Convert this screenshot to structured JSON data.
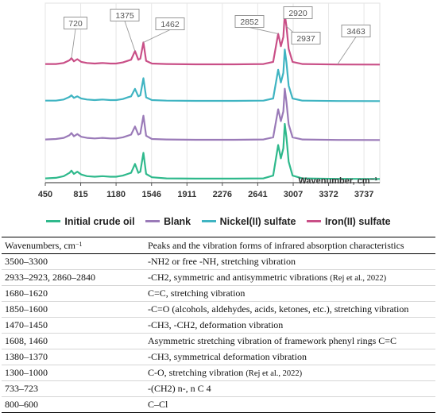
{
  "chart_data": {
    "type": "line",
    "xlabel": "Wavenumber, cm⁻¹",
    "xlim": [
      450,
      3900
    ],
    "x_ticks": [
      "450",
      "815",
      "1180",
      "1546",
      "1911",
      "2276",
      "2641",
      "3007",
      "3372",
      "3737"
    ],
    "x_tick_values": [
      450,
      815,
      1180,
      1546,
      1911,
      2276,
      2641,
      3007,
      3372,
      3737
    ],
    "series": [
      {
        "name": "Iron(II) sulfate",
        "color": "#c94f87",
        "points": [
          [
            450,
            0.02
          ],
          [
            560,
            0.02
          ],
          [
            640,
            0.04
          ],
          [
            700,
            0.09
          ],
          [
            720,
            0.13
          ],
          [
            745,
            0.07
          ],
          [
            780,
            0.11
          ],
          [
            820,
            0.06
          ],
          [
            880,
            0.04
          ],
          [
            960,
            0.03
          ],
          [
            1040,
            0.04
          ],
          [
            1120,
            0.03
          ],
          [
            1180,
            0.03
          ],
          [
            1250,
            0.05
          ],
          [
            1300,
            0.08
          ],
          [
            1335,
            0.1
          ],
          [
            1375,
            0.26
          ],
          [
            1410,
            0.1
          ],
          [
            1430,
            0.12
          ],
          [
            1462,
            0.42
          ],
          [
            1490,
            0.08
          ],
          [
            1550,
            0.03
          ],
          [
            1700,
            0.02
          ],
          [
            2000,
            0.015
          ],
          [
            2400,
            0.015
          ],
          [
            2700,
            0.02
          ],
          [
            2800,
            0.06
          ],
          [
            2852,
            0.58
          ],
          [
            2880,
            0.35
          ],
          [
            2905,
            0.52
          ],
          [
            2920,
            0.95
          ],
          [
            2937,
            0.72
          ],
          [
            2960,
            0.3
          ],
          [
            3000,
            0.06
          ],
          [
            3100,
            0.02
          ],
          [
            3463,
            0.012
          ],
          [
            3900,
            0.01
          ]
        ]
      },
      {
        "name": "Nickel(II) sulfate",
        "color": "#3fb4c2",
        "points": [
          [
            450,
            0.02
          ],
          [
            560,
            0.02
          ],
          [
            640,
            0.04
          ],
          [
            700,
            0.09
          ],
          [
            720,
            0.12
          ],
          [
            745,
            0.07
          ],
          [
            780,
            0.1
          ],
          [
            820,
            0.06
          ],
          [
            880,
            0.04
          ],
          [
            960,
            0.03
          ],
          [
            1040,
            0.04
          ],
          [
            1120,
            0.03
          ],
          [
            1180,
            0.03
          ],
          [
            1250,
            0.05
          ],
          [
            1300,
            0.08
          ],
          [
            1335,
            0.1
          ],
          [
            1375,
            0.24
          ],
          [
            1410,
            0.1
          ],
          [
            1430,
            0.12
          ],
          [
            1462,
            0.44
          ],
          [
            1490,
            0.08
          ],
          [
            1550,
            0.03
          ],
          [
            1700,
            0.02
          ],
          [
            2000,
            0.015
          ],
          [
            2400,
            0.015
          ],
          [
            2700,
            0.02
          ],
          [
            2800,
            0.06
          ],
          [
            2852,
            0.6
          ],
          [
            2880,
            0.36
          ],
          [
            2905,
            0.54
          ],
          [
            2920,
            0.98
          ],
          [
            2937,
            0.74
          ],
          [
            2960,
            0.3
          ],
          [
            3000,
            0.06
          ],
          [
            3100,
            0.02
          ],
          [
            3463,
            0.012
          ],
          [
            3900,
            0.01
          ]
        ]
      },
      {
        "name": "Blank",
        "color": "#9a7ab8",
        "points": [
          [
            450,
            0.02
          ],
          [
            560,
            0.03
          ],
          [
            640,
            0.05
          ],
          [
            700,
            0.1
          ],
          [
            720,
            0.14
          ],
          [
            745,
            0.08
          ],
          [
            780,
            0.12
          ],
          [
            820,
            0.07
          ],
          [
            880,
            0.05
          ],
          [
            960,
            0.04
          ],
          [
            1040,
            0.05
          ],
          [
            1120,
            0.04
          ],
          [
            1180,
            0.04
          ],
          [
            1250,
            0.06
          ],
          [
            1300,
            0.09
          ],
          [
            1335,
            0.11
          ],
          [
            1375,
            0.26
          ],
          [
            1410,
            0.11
          ],
          [
            1430,
            0.13
          ],
          [
            1462,
            0.46
          ],
          [
            1490,
            0.09
          ],
          [
            1550,
            0.03
          ],
          [
            1700,
            0.02
          ],
          [
            2000,
            0.015
          ],
          [
            2400,
            0.015
          ],
          [
            2700,
            0.02
          ],
          [
            2800,
            0.06
          ],
          [
            2852,
            0.58
          ],
          [
            2880,
            0.36
          ],
          [
            2905,
            0.54
          ],
          [
            2920,
            0.96
          ],
          [
            2937,
            0.72
          ],
          [
            2960,
            0.3
          ],
          [
            3000,
            0.06
          ],
          [
            3100,
            0.02
          ],
          [
            3463,
            0.012
          ],
          [
            3900,
            0.01
          ]
        ]
      },
      {
        "name": "Initial crude oil",
        "color": "#2fb98c",
        "points": [
          [
            450,
            0.02
          ],
          [
            560,
            0.03
          ],
          [
            640,
            0.06
          ],
          [
            700,
            0.12
          ],
          [
            720,
            0.16
          ],
          [
            745,
            0.1
          ],
          [
            780,
            0.14
          ],
          [
            820,
            0.09
          ],
          [
            880,
            0.06
          ],
          [
            960,
            0.05
          ],
          [
            1040,
            0.06
          ],
          [
            1120,
            0.05
          ],
          [
            1180,
            0.05
          ],
          [
            1250,
            0.07
          ],
          [
            1300,
            0.1
          ],
          [
            1335,
            0.12
          ],
          [
            1375,
            0.28
          ],
          [
            1410,
            0.12
          ],
          [
            1430,
            0.14
          ],
          [
            1462,
            0.48
          ],
          [
            1490,
            0.1
          ],
          [
            1550,
            0.04
          ],
          [
            1700,
            0.02
          ],
          [
            2000,
            0.015
          ],
          [
            2400,
            0.015
          ],
          [
            2700,
            0.02
          ],
          [
            2800,
            0.07
          ],
          [
            2852,
            0.62
          ],
          [
            2880,
            0.38
          ],
          [
            2905,
            0.56
          ],
          [
            2920,
            1.0
          ],
          [
            2937,
            0.76
          ],
          [
            2960,
            0.32
          ],
          [
            3000,
            0.07
          ],
          [
            3100,
            0.02
          ],
          [
            3463,
            0.012
          ],
          [
            3900,
            0.01
          ]
        ]
      }
    ],
    "annotations": [
      {
        "label": "720",
        "x": 720,
        "series": 0
      },
      {
        "label": "1375",
        "x": 1375,
        "series": 0
      },
      {
        "label": "1462",
        "x": 1462,
        "series": 0
      },
      {
        "label": "2852",
        "x": 2852,
        "series": 0
      },
      {
        "label": "2920",
        "x": 2920,
        "series": 0
      },
      {
        "label": "2937",
        "x": 2937,
        "series": 0
      },
      {
        "label": "3463",
        "x": 3463,
        "series": 0
      }
    ],
    "legend": [
      {
        "label": "Initial crude oil",
        "color": "#2fb98c"
      },
      {
        "label": "Blank",
        "color": "#9a7ab8"
      },
      {
        "label": "Nickel(II) sulfate",
        "color": "#3fb4c2"
      },
      {
        "label": "Iron(II) sulfate",
        "color": "#c94f87"
      }
    ],
    "grid": true,
    "legend_position": "bottom"
  },
  "table": {
    "header": {
      "col1_main": "Wavenumbers, cm",
      "col1_sup": "−1",
      "col2": "Peaks and the vibration forms of infrared absorption characteristics"
    },
    "rows": [
      {
        "wavenumbers": "3500–3300",
        "description": "-NH2 or free -NH, stretching vibration",
        "cite": ""
      },
      {
        "wavenumbers": "2933–2923, 2860–2840",
        "description": "-CH2, symmetric and antisymmetric vibrations ",
        "cite": "(Rej et al., 2022)"
      },
      {
        "wavenumbers": "1680–1620",
        "description": "C=C, stretching vibration",
        "cite": ""
      },
      {
        "wavenumbers": "1850–1600",
        "description": "-C=O (alcohols, aldehydes, acids, ketones, etc.), stretching vibration",
        "cite": ""
      },
      {
        "wavenumbers": "1470–1450",
        "description": "-CH3, -CH2, deformation vibration",
        "cite": ""
      },
      {
        "wavenumbers": "1608, 1460",
        "description": "Asymmetric stretching vibration of framework phenyl rings C=C",
        "cite": ""
      },
      {
        "wavenumbers": "1380–1370",
        "description": "-CH3, symmetrical deformation vibration",
        "cite": ""
      },
      {
        "wavenumbers": "1300–1000",
        "description": "C-O, stretching vibration ",
        "cite": "(Rej et al., 2022)"
      },
      {
        "wavenumbers": "733–723",
        "description": "-(CH2) n-, n C 4",
        "cite": ""
      },
      {
        "wavenumbers": "800–600",
        "description": "C–Cl",
        "cite": ""
      }
    ]
  }
}
